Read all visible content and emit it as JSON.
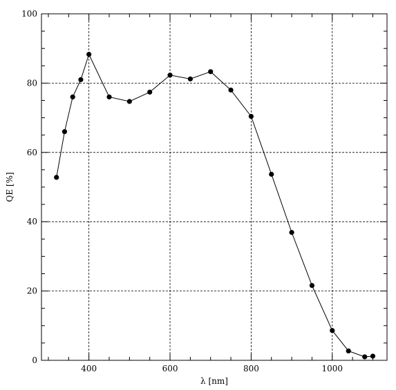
{
  "chart_data": {
    "type": "line",
    "xlabel": "λ [nm]",
    "ylabel": "QE [%]",
    "xlim": [
      283,
      1135
    ],
    "ylim": [
      0,
      100
    ],
    "grid": true,
    "x_ticks": [
      400,
      600,
      800,
      1000
    ],
    "y_ticks": [
      0,
      20,
      40,
      60,
      80,
      100
    ],
    "x_minor_step": 50,
    "y_minor_step": 5,
    "series": [
      {
        "x": [
          320,
          340,
          360,
          380,
          400,
          450,
          500,
          550,
          600,
          650,
          700,
          750,
          800,
          850,
          900,
          950,
          1000,
          1040,
          1080,
          1100
        ],
        "y": [
          52.8,
          66.0,
          76.0,
          81.0,
          88.3,
          76.0,
          74.7,
          77.4,
          82.3,
          81.2,
          83.3,
          78.0,
          70.4,
          53.7,
          36.9,
          21.6,
          8.6,
          2.7,
          1.0,
          1.2
        ]
      }
    ],
    "style": {
      "line_color": "#000000",
      "marker_color": "#000000",
      "grid_color": "#000000"
    }
  }
}
